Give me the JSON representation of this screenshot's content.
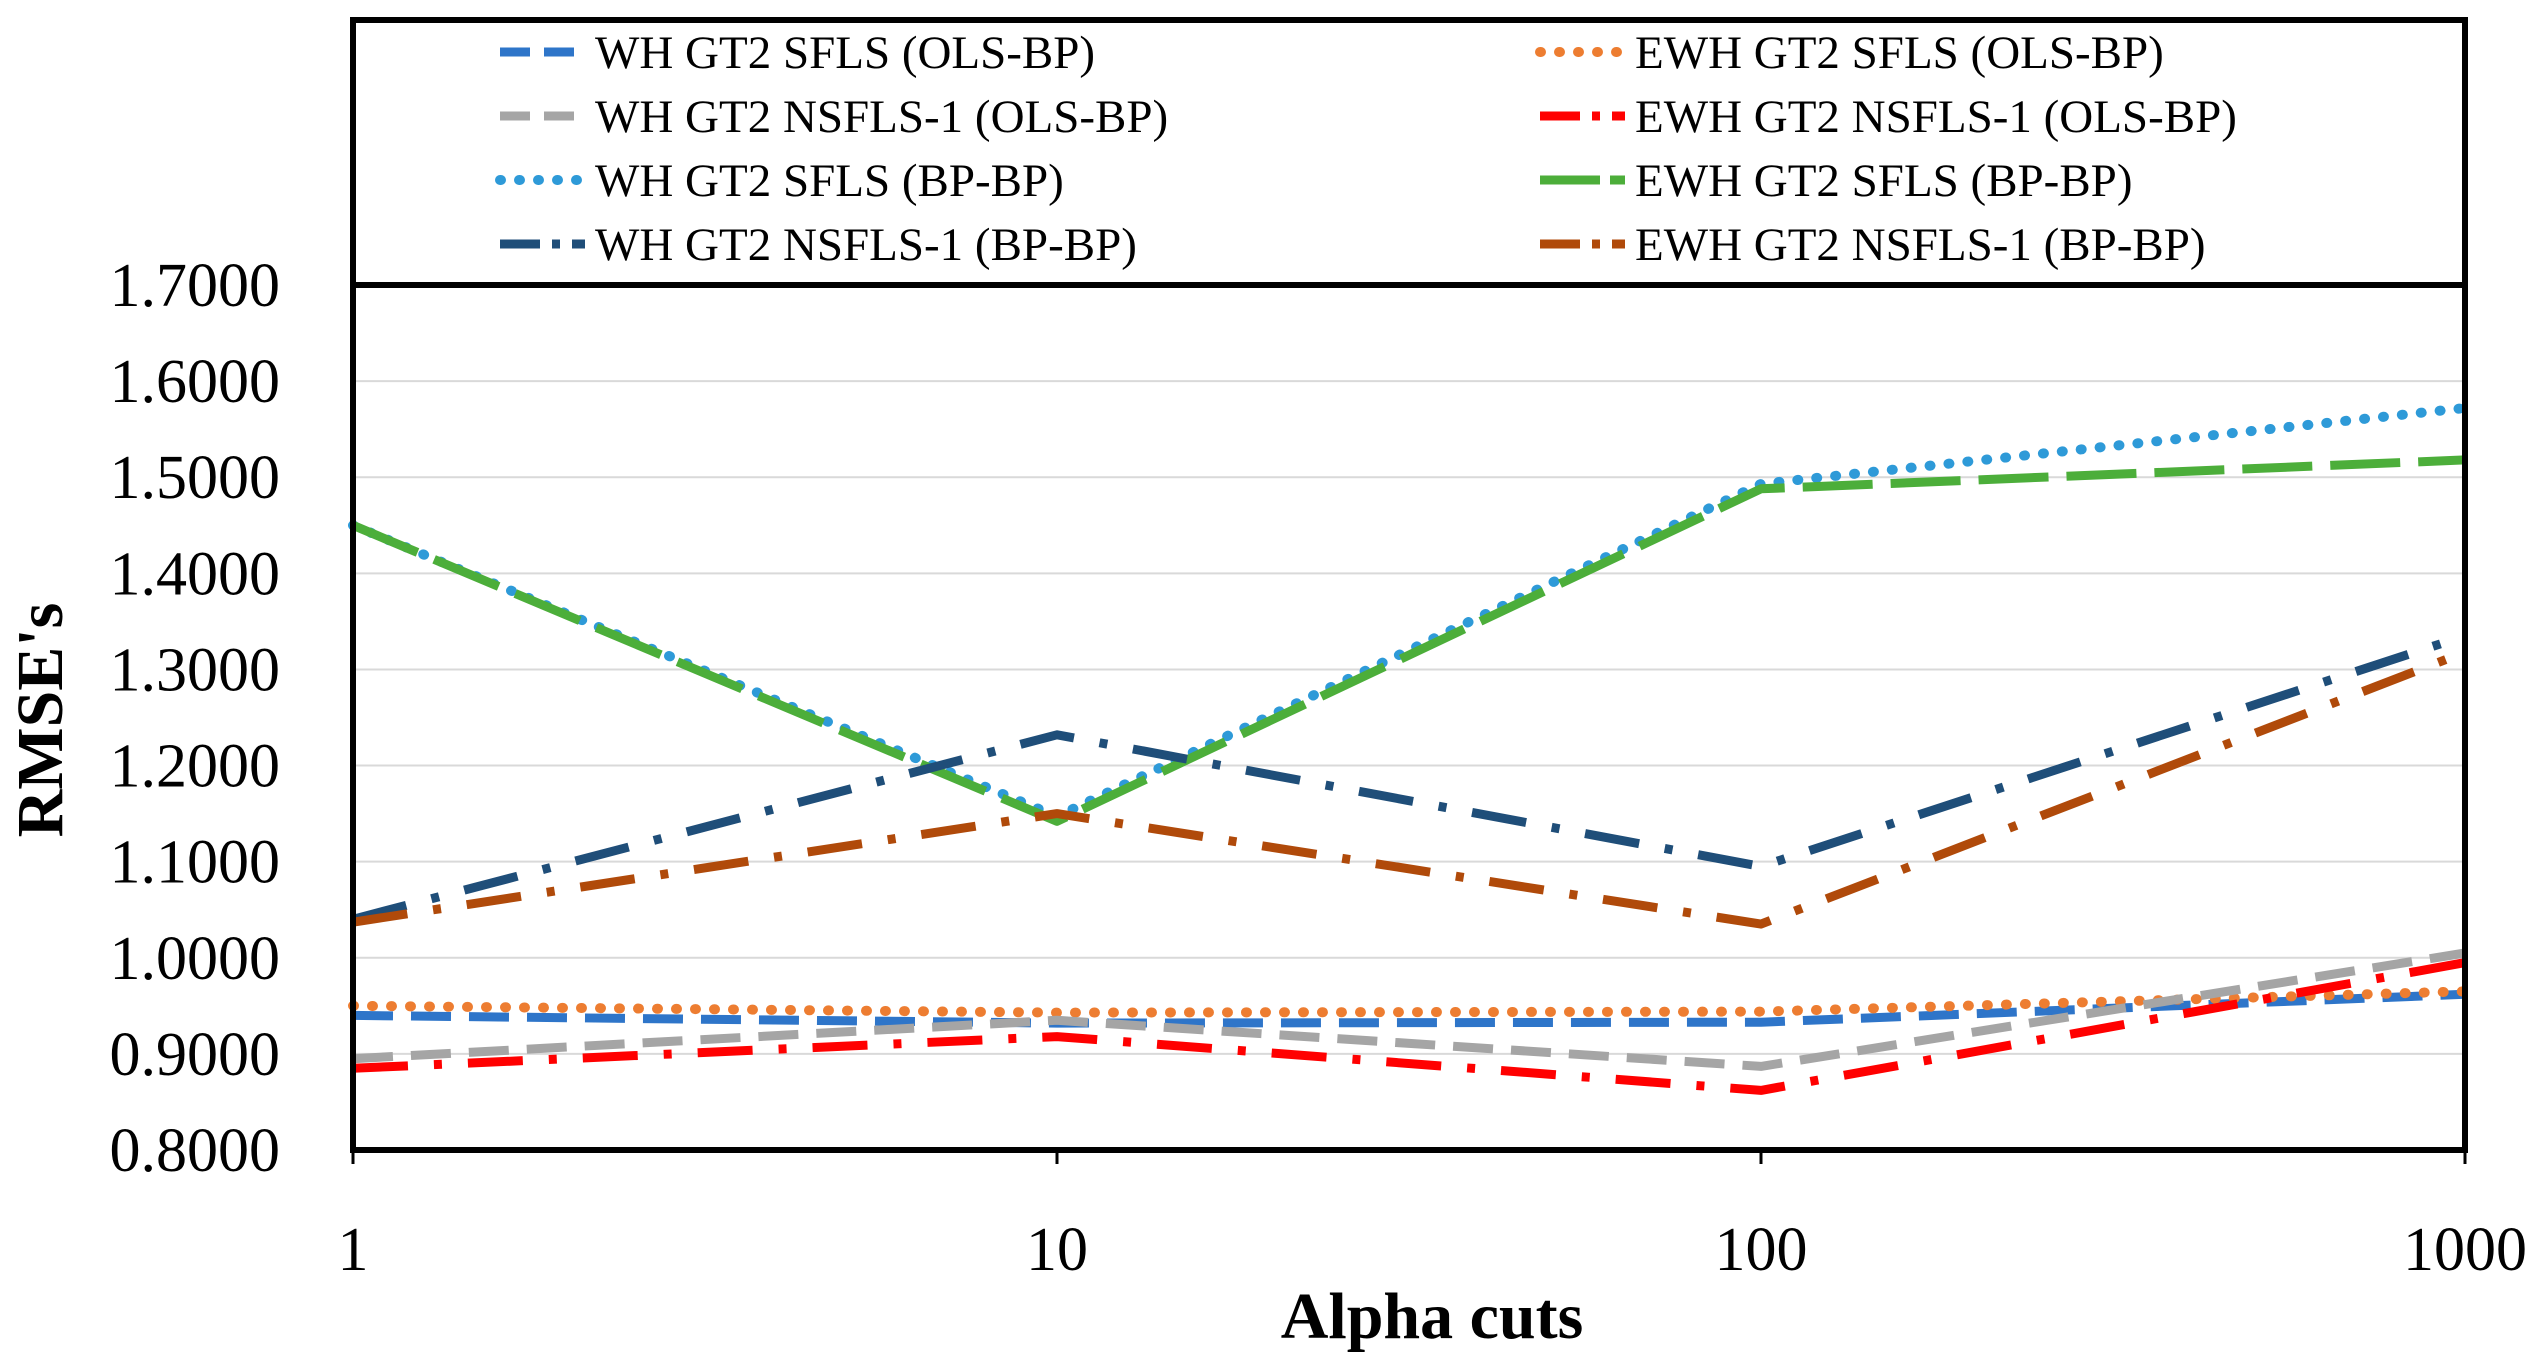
{
  "chart_data": {
    "type": "line",
    "title": "",
    "xlabel": "Alpha cuts",
    "ylabel": "RMSE's",
    "x_scale": "log",
    "x": [
      1,
      10,
      100,
      1000
    ],
    "x_tick_labels": [
      "1",
      "10",
      "100",
      "1000"
    ],
    "ylim": [
      0.8,
      1.7
    ],
    "y_ticks": [
      0.8,
      0.9,
      1.0,
      1.1,
      1.2,
      1.3,
      1.4,
      1.5,
      1.6,
      1.7
    ],
    "y_tick_labels": [
      "0.8000",
      "0.9000",
      "1.0000",
      "1.1000",
      "1.2000",
      "1.3000",
      "1.4000",
      "1.5000",
      "1.6000",
      "1.7000"
    ],
    "grid": true,
    "legend_position": "top",
    "series": [
      {
        "name": "WH GT2 SFLS (OLS-BP)",
        "values": [
          0.94,
          0.932,
          0.933,
          0.962
        ],
        "color": "#2e75c9",
        "style": "dash"
      },
      {
        "name": "EWH GT2 SFLS (OLS-BP)",
        "values": [
          0.95,
          0.943,
          0.944,
          0.965
        ],
        "color": "#ed7d31",
        "style": "dot"
      },
      {
        "name": "WH GT2 NSFLS-1 (OLS-BP)",
        "values": [
          0.895,
          0.935,
          0.887,
          1.005
        ],
        "color": "#a5a5a5",
        "style": "dash"
      },
      {
        "name": "EWH GT2 NSFLS-1 (OLS-BP)",
        "values": [
          0.885,
          0.918,
          0.862,
          0.995
        ],
        "color": "#ff0000",
        "style": "dashdot"
      },
      {
        "name": "WH GT2 SFLS (BP-BP)",
        "values": [
          1.45,
          1.147,
          1.493,
          1.572
        ],
        "color": "#2e9ad8",
        "style": "dot"
      },
      {
        "name": "EWH GT2 SFLS (BP-BP)",
        "values": [
          1.45,
          1.142,
          1.488,
          1.518
        ],
        "color": "#4cae3a",
        "style": "longdash"
      },
      {
        "name": "WH GT2 NSFLS-1 (BP-BP)",
        "values": [
          1.04,
          1.232,
          1.095,
          1.335
        ],
        "color": "#1f4e79",
        "style": "dashdot"
      },
      {
        "name": "EWH GT2 NSFLS-1 (BP-BP)",
        "values": [
          1.037,
          1.15,
          1.035,
          1.318
        ],
        "color": "#b04a0a",
        "style": "dashdot"
      }
    ]
  }
}
